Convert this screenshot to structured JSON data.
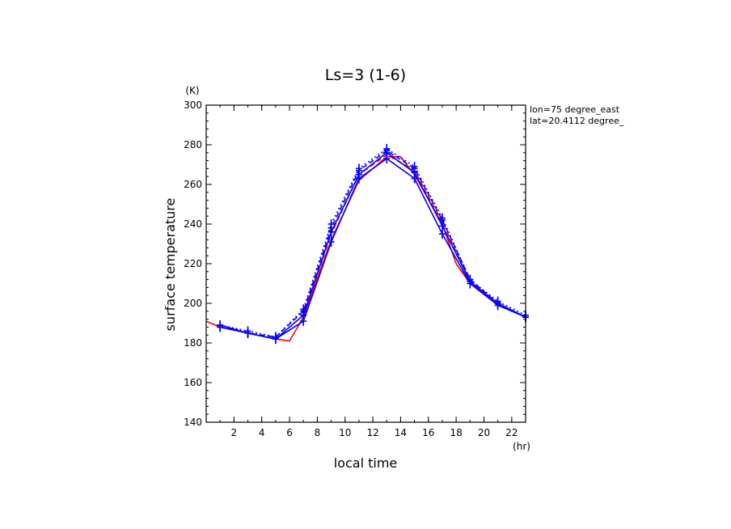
{
  "chart_data": {
    "type": "line",
    "title": "Ls=3 (1-6)",
    "xlabel": "local time",
    "ylabel": "surface temperature",
    "x_unit": "(hr)",
    "y_unit": "(K)",
    "xlim": [
      0,
      23
    ],
    "ylim": [
      140,
      300
    ],
    "x_ticks": [
      2,
      4,
      6,
      8,
      10,
      12,
      14,
      16,
      18,
      20,
      22
    ],
    "y_ticks": [
      140,
      160,
      180,
      200,
      220,
      240,
      260,
      280,
      300
    ],
    "annotations": [
      "lon=75 degree_east",
      "lat=20.4112 degree_"
    ],
    "grid": false,
    "series": [
      {
        "color": "#ff0000",
        "style": "solid",
        "markers": false,
        "x": [
          0,
          1,
          3,
          5,
          6,
          7,
          9,
          11,
          13,
          14,
          15,
          17,
          18,
          19,
          21,
          23
        ],
        "y": [
          191,
          188,
          185,
          182,
          181,
          193,
          232,
          262,
          274,
          274,
          265,
          240,
          220,
          210,
          200,
          193
        ]
      },
      {
        "color": "#ff0000",
        "style": "dashed",
        "markers": false,
        "x": [
          1,
          3,
          5,
          7,
          9,
          11,
          13,
          15,
          17,
          19,
          21,
          23
        ],
        "y": [
          188,
          185,
          182,
          194,
          235,
          265,
          275,
          267,
          241,
          211,
          200,
          193
        ]
      },
      {
        "color": "#0000ff",
        "style": "solid",
        "markers": true,
        "x": [
          1,
          3,
          5,
          7,
          9,
          11,
          13,
          15,
          17,
          19,
          21,
          23
        ],
        "y": [
          188,
          185,
          182,
          191,
          231,
          263,
          273,
          263,
          235,
          210,
          199,
          193
        ]
      },
      {
        "color": "#0000ff",
        "style": "solid",
        "markers": true,
        "x": [
          1,
          3,
          5,
          7,
          9,
          11,
          13,
          15,
          17,
          19,
          21,
          23
        ],
        "y": [
          189,
          185,
          182,
          194,
          236,
          265,
          276,
          266,
          239,
          211,
          200,
          193
        ]
      },
      {
        "color": "#0000ff",
        "style": "dashed",
        "markers": true,
        "x": [
          1,
          3,
          5,
          7,
          9,
          11,
          13,
          15,
          17,
          19,
          21,
          23
        ],
        "y": [
          188,
          185,
          183,
          196,
          238,
          267,
          277,
          268,
          242,
          212,
          200,
          193
        ]
      },
      {
        "color": "#0000ff",
        "style": "dotted",
        "markers": true,
        "x": [
          1,
          3,
          5,
          7,
          9,
          11,
          13,
          15,
          17,
          19,
          21,
          23
        ],
        "y": [
          189,
          186,
          183,
          197,
          240,
          268,
          278,
          269,
          243,
          212,
          201,
          194
        ]
      }
    ]
  }
}
